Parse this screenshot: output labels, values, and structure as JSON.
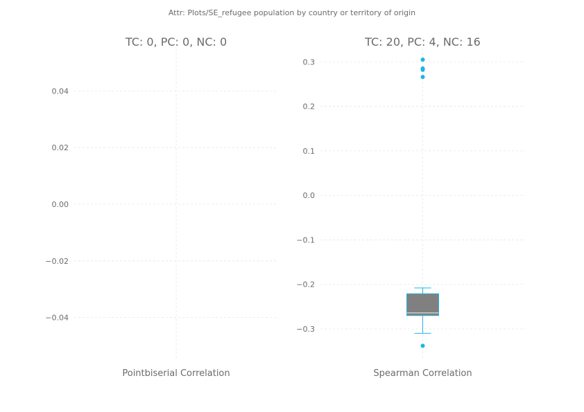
{
  "suptitle": "Attr: Plots/SE_refugee population by country or territory of origin",
  "colors": {
    "accent": "#1fb3e8",
    "box": "#808080",
    "text": "#6b6b6b",
    "grid": "#e6e6e6"
  },
  "chart_data": [
    {
      "type": "box",
      "title": "TC: 0, PC: 0, NC: 0",
      "xlabel": "Pointbiserial Correlation",
      "ylim": [
        -0.055,
        0.055
      ],
      "yticks": [
        0.04,
        0.02,
        0.0,
        -0.02,
        -0.04
      ],
      "ytick_labels": [
        "0.04",
        "0.02",
        "0.00",
        "−0.02",
        "−0.04"
      ],
      "grid": true,
      "box": null,
      "outliers": []
    },
    {
      "type": "box",
      "title": "TC: 20, PC: 4, NC: 16",
      "xlabel": "Spearman Correlation",
      "ylim": [
        -0.37,
        0.33
      ],
      "yticks": [
        0.3,
        0.2,
        0.1,
        0.0,
        -0.1,
        -0.2,
        -0.3
      ],
      "ytick_labels": [
        "0.3",
        "0.2",
        "0.1",
        "0.0",
        "−0.1",
        "−0.2",
        "−0.3"
      ],
      "grid": true,
      "box": {
        "whisker_low": -0.31,
        "q1": -0.27,
        "median": -0.264,
        "q3": -0.221,
        "whisker_high": -0.208
      },
      "outliers": [
        0.305,
        0.285,
        0.282,
        0.266,
        -0.338
      ]
    }
  ]
}
